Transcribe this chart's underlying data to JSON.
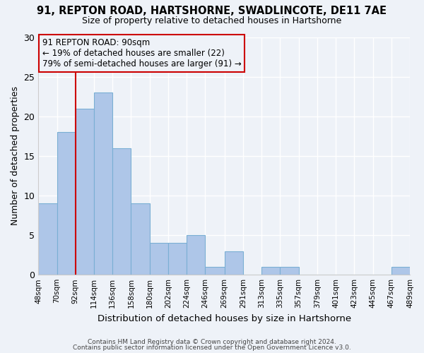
{
  "title": "91, REPTON ROAD, HARTSHORNE, SWADLINCOTE, DE11 7AE",
  "subtitle": "Size of property relative to detached houses in Hartshorne",
  "xlabel": "Distribution of detached houses by size in Hartshorne",
  "ylabel": "Number of detached properties",
  "bar_color": "#aec6e8",
  "bar_edgecolor": "#7aafd4",
  "background_color": "#eef2f8",
  "grid_color": "#ffffff",
  "bin_edges": [
    48,
    70,
    92,
    114,
    136,
    158,
    180,
    202,
    224,
    246,
    269,
    291,
    313,
    335,
    357,
    379,
    401,
    423,
    445,
    467,
    489
  ],
  "bin_labels": [
    "48sqm",
    "70sqm",
    "92sqm",
    "114sqm",
    "136sqm",
    "158sqm",
    "180sqm",
    "202sqm",
    "224sqm",
    "246sqm",
    "269sqm",
    "291sqm",
    "313sqm",
    "335sqm",
    "357sqm",
    "379sqm",
    "401sqm",
    "423sqm",
    "445sqm",
    "467sqm",
    "489sqm"
  ],
  "counts": [
    9,
    18,
    21,
    23,
    16,
    9,
    4,
    4,
    5,
    1,
    3,
    0,
    1,
    1,
    0,
    0,
    0,
    0,
    0,
    1
  ],
  "vline_x": 92,
  "vline_color": "#cc0000",
  "annotation_title": "91 REPTON ROAD: 90sqm",
  "annotation_line1": "← 19% of detached houses are smaller (22)",
  "annotation_line2": "79% of semi-detached houses are larger (91) →",
  "annotation_box_edgecolor": "#cc0000",
  "ylim": [
    0,
    30
  ],
  "yticks": [
    0,
    5,
    10,
    15,
    20,
    25,
    30
  ],
  "footer1": "Contains HM Land Registry data © Crown copyright and database right 2024.",
  "footer2": "Contains public sector information licensed under the Open Government Licence v3.0."
}
